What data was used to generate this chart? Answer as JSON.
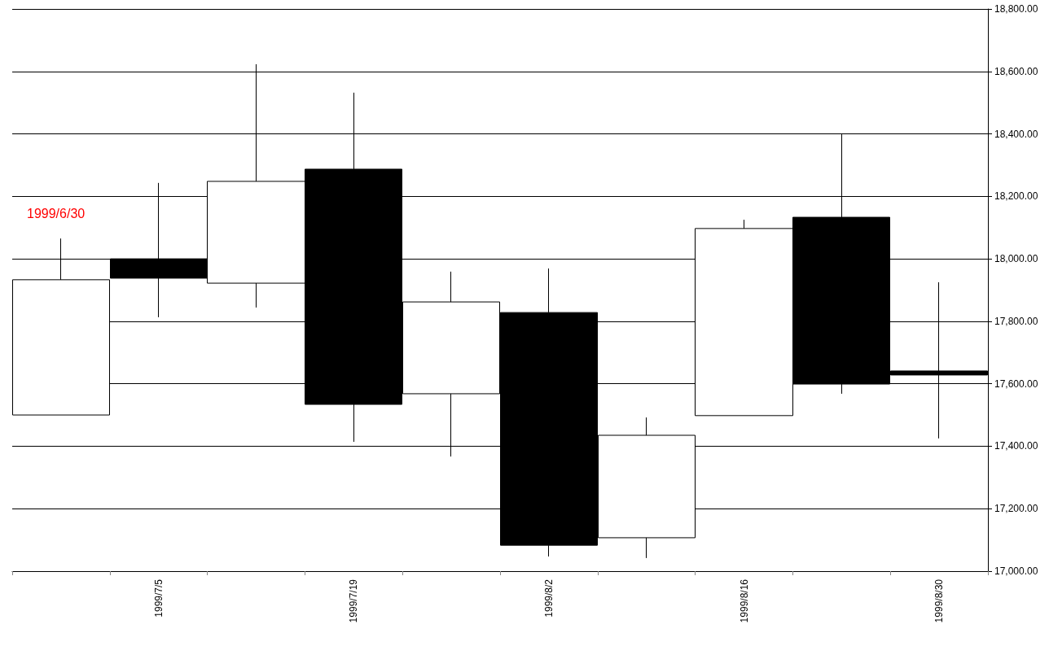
{
  "chart_data": {
    "type": "candlestick",
    "categories": [
      null,
      "1999/7/5",
      null,
      "1999/7/19",
      null,
      "1999/8/2",
      null,
      "1999/8/16",
      null,
      "1999/8/30"
    ],
    "ohlc": [
      [
        17500,
        18065,
        17500,
        17933
      ],
      [
        18000,
        18243,
        17813,
        17938
      ],
      [
        17922,
        18623,
        17844,
        18248
      ],
      [
        18287,
        18532,
        17414,
        17534
      ],
      [
        17568,
        17959,
        17367,
        17862
      ],
      [
        17828,
        17969,
        17047,
        17083
      ],
      [
        17107,
        17492,
        17042,
        17435
      ],
      [
        17498,
        18125,
        17498,
        18097
      ],
      [
        18133,
        18401,
        17568,
        17599
      ],
      [
        17641,
        17925,
        17425,
        17628
      ]
    ],
    "ylim": [
      17000,
      18800
    ],
    "yticks": [
      {
        "value": 17000,
        "label": "17,000.00"
      },
      {
        "value": 17200,
        "label": "17,200.00"
      },
      {
        "value": 17400,
        "label": "17,400.00"
      },
      {
        "value": 17600,
        "label": "17,600.00"
      },
      {
        "value": 17800,
        "label": "17,800.00"
      },
      {
        "value": 18000,
        "label": "18,000.00"
      },
      {
        "value": 18200,
        "label": "18,200.00"
      },
      {
        "value": 18400,
        "label": "18,400.00"
      },
      {
        "value": 18600,
        "label": "18,600.00"
      },
      {
        "value": 18800,
        "label": "18,800.00"
      }
    ],
    "grid": "y",
    "annotations": [
      "1999/6/30"
    ]
  }
}
